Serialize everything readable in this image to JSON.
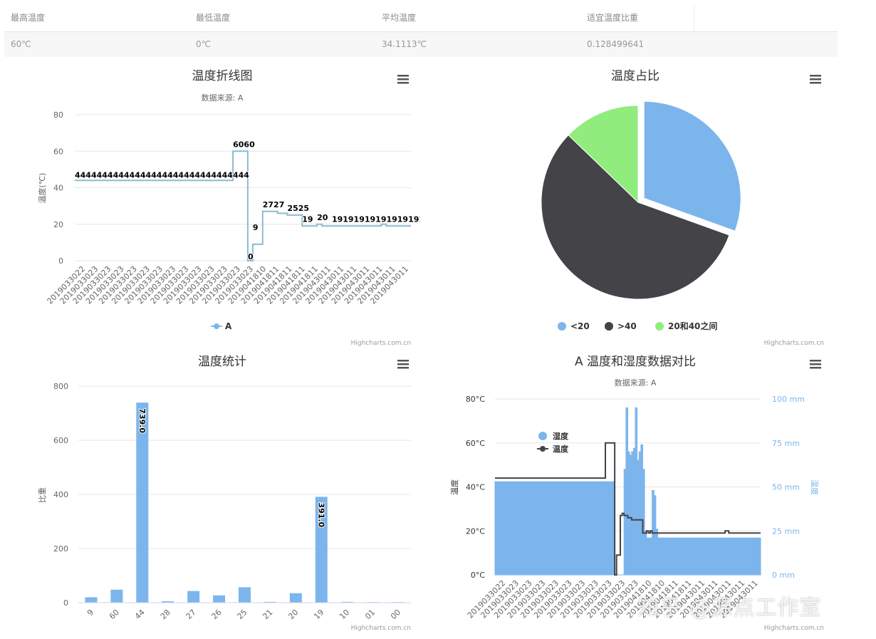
{
  "stats": {
    "headers": [
      "最高温度",
      "最低温度",
      "平均温度",
      "适宜温度比重"
    ],
    "values": [
      "60℃",
      "0℃",
      "34.1113℃",
      "0.128499641"
    ]
  },
  "credits": "Highcharts.com.cn",
  "colors": {
    "blue": "#7cb5ec",
    "dark": "#434348",
    "green": "#90ed7d",
    "line": "#8bbcd0"
  },
  "watermark": "知乎 @源点工作室",
  "chart_data": [
    {
      "type": "line",
      "title": "温度折线图",
      "subtitle": "数据来源: A",
      "ylabel": "温度(℃)",
      "ylim": [
        0,
        80
      ],
      "yticks": [
        0,
        20,
        40,
        60,
        80
      ],
      "legend": "bottom-center",
      "x_tick_labels": [
        "2019033022",
        "2019033023",
        "2019033023",
        "2019033023",
        "2019033023",
        "2019033023",
        "2019033023",
        "2019033023",
        "2019033023",
        "2019033023",
        "2019033023",
        "2019033023",
        "2019033023",
        "2019033023",
        "2019041810",
        "2019041811",
        "2019041811",
        "2019041811",
        "2019041811",
        "2019043011",
        "2019043011",
        "2019043011",
        "2019043011",
        "2019043011",
        "2019043011",
        "2019043011"
      ],
      "data_label_rows": [
        {
          "text": "44444444444444444444444444444444",
          "x": 2019033022.5,
          "y": 44
        },
        {
          "text": "6060",
          "x": 2019041810,
          "y": 60
        },
        {
          "text": "9",
          "x": 2019041810.9,
          "y": 9
        },
        {
          "text": "0",
          "x": 2019041810.6,
          "y": 0
        },
        {
          "text": "2727",
          "x": 2019041811.1,
          "y": 27
        },
        {
          "text": "2525",
          "x": 2019041811.5,
          "y": 25
        },
        {
          "text": "19",
          "x": 2019043011,
          "y": 19
        },
        {
          "text": "20",
          "x": 2019043011.2,
          "y": 20
        },
        {
          "text": "191919191919191919",
          "x": 2019043011.5,
          "y": 19
        }
      ],
      "series": [
        {
          "name": "A",
          "values": [
            44,
            44,
            44,
            44,
            44,
            44,
            44,
            44,
            44,
            44,
            44,
            44,
            44,
            44,
            44,
            44,
            44,
            44,
            44,
            44,
            44,
            44,
            44,
            44,
            44,
            44,
            44,
            44,
            44,
            44,
            44,
            44,
            60,
            60,
            60,
            0,
            9,
            9,
            27,
            27,
            27,
            26,
            26,
            25,
            25,
            25,
            19,
            19,
            19,
            20,
            19,
            19,
            19,
            19,
            19,
            19,
            19,
            19,
            19,
            19,
            19,
            19,
            20,
            19,
            19,
            19,
            19,
            19
          ]
        }
      ]
    },
    {
      "type": "pie",
      "title": "温度占比",
      "legend": "bottom-center",
      "slices": [
        {
          "name": "<20",
          "value": 30.5,
          "color": "#7cb5ec",
          "sliced": true
        },
        {
          "name": ">40",
          "value": 56.7,
          "color": "#434348",
          "sliced": false
        },
        {
          "name": "20和40之间",
          "value": 12.8,
          "color": "#90ed7d",
          "sliced": false
        }
      ]
    },
    {
      "type": "bar",
      "title": "温度统计",
      "ylabel": "比重",
      "ylim": [
        0,
        800
      ],
      "yticks": [
        0,
        200,
        400,
        600,
        800
      ],
      "categories": [
        "9",
        "60",
        "44",
        "28",
        "27",
        "26",
        "25",
        "21",
        "20",
        "19",
        "10",
        "01",
        "00"
      ],
      "values": [
        20,
        48,
        739.0,
        5,
        43,
        27,
        57,
        3,
        35,
        391.0,
        3,
        2,
        2
      ],
      "data_labels": {
        "2": "739.0",
        "9": "391.0"
      }
    },
    {
      "type": "line",
      "title": "A 温度和湿度数据对比",
      "subtitle": "数据来源: A",
      "ylabel_left": "温度",
      "ylabel_right": "湿度",
      "ylim_left": [
        0,
        80
      ],
      "ylim_right": [
        0,
        100
      ],
      "yticks_left": [
        "0°C",
        "20°C",
        "40°C",
        "60°C",
        "80°C"
      ],
      "yticks_right": [
        "0 mm",
        "25 mm",
        "50 mm",
        "75 mm",
        "100 mm"
      ],
      "legend": "top-left",
      "x_tick_labels": [
        "2019033022",
        "2019033023",
        "2019033023",
        "2019033023",
        "2019033023",
        "2019033023",
        "2019033023",
        "2019033023",
        "2019033023",
        "2019033023",
        "2019033023",
        "2019041810",
        "2019041810",
        "2019041811",
        "2019041811",
        "2019043011",
        "2019043011",
        "2019043011",
        "2019043011",
        "2019043011"
      ],
      "series": [
        {
          "name": "湿度",
          "type": "area",
          "axis": "right",
          "values": [
            53,
            53,
            53,
            53,
            53,
            53,
            53,
            53,
            53,
            53,
            53,
            53,
            53,
            53,
            53,
            53,
            53,
            53,
            53,
            53,
            53,
            53,
            53,
            53,
            53,
            53,
            53,
            53,
            53,
            53,
            53,
            53,
            53,
            53,
            53,
            53,
            53,
            53,
            53,
            53,
            53,
            53,
            53,
            53,
            53,
            53,
            53,
            53,
            53,
            53,
            53,
            53,
            53,
            53,
            53,
            53,
            53,
            53,
            53,
            53,
            53,
            53,
            53,
            53,
            0,
            0,
            0,
            0,
            0,
            60,
            95,
            70,
            68,
            70,
            72,
            95,
            65,
            70,
            74,
            60,
            25,
            21,
            21,
            21,
            48,
            45,
            26,
            21,
            21,
            21,
            21,
            21,
            21,
            21,
            21,
            21,
            21,
            21,
            21,
            21,
            21,
            21,
            21,
            21,
            21,
            21,
            21,
            21,
            21,
            21,
            21,
            21,
            21,
            21,
            21,
            21,
            21,
            21,
            21,
            21,
            21,
            21,
            21,
            21,
            21,
            21,
            21,
            21,
            21,
            21,
            21,
            21,
            21,
            21,
            21,
            21,
            21,
            21,
            21,
            21,
            21,
            21
          ]
        },
        {
          "name": "温度",
          "type": "line",
          "axis": "left",
          "values": [
            44,
            44,
            44,
            44,
            44,
            44,
            44,
            44,
            44,
            44,
            44,
            44,
            44,
            44,
            44,
            44,
            44,
            44,
            44,
            44,
            44,
            44,
            44,
            44,
            44,
            44,
            44,
            44,
            44,
            44,
            44,
            44,
            44,
            44,
            44,
            44,
            44,
            44,
            44,
            44,
            44,
            44,
            44,
            44,
            44,
            44,
            44,
            44,
            44,
            44,
            44,
            44,
            44,
            44,
            44,
            44,
            44,
            44,
            44,
            60,
            60,
            60,
            60,
            60,
            0,
            9,
            9,
            27,
            28,
            27,
            27,
            26,
            26,
            25,
            25,
            25,
            25,
            25,
            25,
            19,
            19,
            20,
            19,
            20,
            19,
            19,
            19,
            19,
            19,
            19,
            19,
            19,
            19,
            19,
            19,
            19,
            19,
            19,
            19,
            19,
            19,
            19,
            19,
            19,
            19,
            19,
            19,
            19,
            19,
            19,
            19,
            19,
            19,
            19,
            19,
            19,
            19,
            19,
            19,
            19,
            19,
            19,
            19,
            20,
            20,
            19,
            19,
            19,
            19,
            19,
            19,
            19,
            19,
            19,
            19,
            19,
            19,
            19,
            19,
            19,
            19,
            19
          ]
        }
      ]
    }
  ]
}
